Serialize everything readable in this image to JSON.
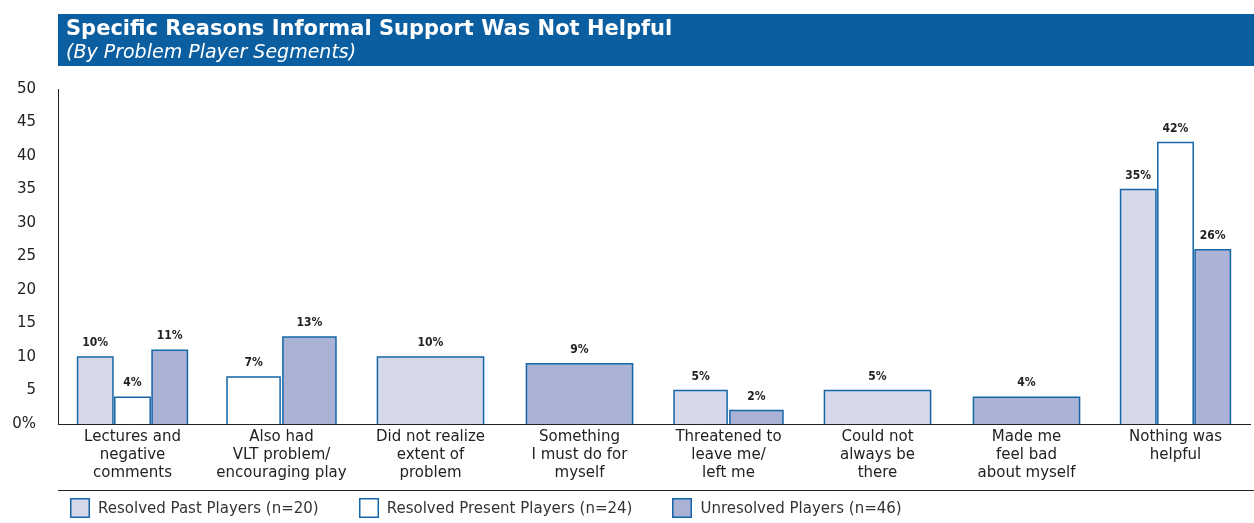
{
  "chart_data": {
    "type": "bar",
    "title": "Specific Reasons Informal Support Was Not Helpful",
    "subtitle": "(By Problem Player Segments)",
    "categories": [
      "Lectures and\nnegative\ncomments",
      "Also had\nVLT problem/\nencouraging play",
      "Did not realize\nextent of\nproblem",
      "Something\nI must do for\nmyself",
      "Threatened to\nleave me/\nleft me",
      "Could not\nalways be\nthere",
      "Made me\nfeel bad\nabout myself",
      "Nothing was\nhelpful"
    ],
    "series": [
      {
        "name": "Resolved Past Players (n=20)",
        "color": "#d5d9ea",
        "values": [
          10,
          null,
          10,
          null,
          5,
          5,
          null,
          35
        ],
        "value_labels": [
          "10%",
          null,
          "10%",
          null,
          "5%",
          "5%",
          null,
          "35%"
        ]
      },
      {
        "name": "Resolved Present Players (n=24)",
        "color": "#ffffff",
        "values": [
          4,
          7,
          null,
          null,
          null,
          null,
          null,
          42
        ],
        "value_labels": [
          "4%",
          "7%",
          null,
          null,
          null,
          null,
          null,
          "42%"
        ]
      },
      {
        "name": "Unresolved Players (n=46)",
        "color": "#aab3d5",
        "values": [
          11,
          13,
          null,
          9,
          2,
          null,
          4,
          26
        ],
        "value_labels": [
          "11%",
          "13%",
          null,
          "9%",
          "2%",
          null,
          "4%",
          "26%"
        ]
      }
    ],
    "ylim": [
      0,
      50
    ],
    "yticks": [
      {
        "value": 0,
        "label": "0%"
      },
      5,
      10,
      15,
      20,
      25,
      30,
      35,
      40,
      45,
      50
    ],
    "grid": false,
    "legend": "bottom"
  }
}
